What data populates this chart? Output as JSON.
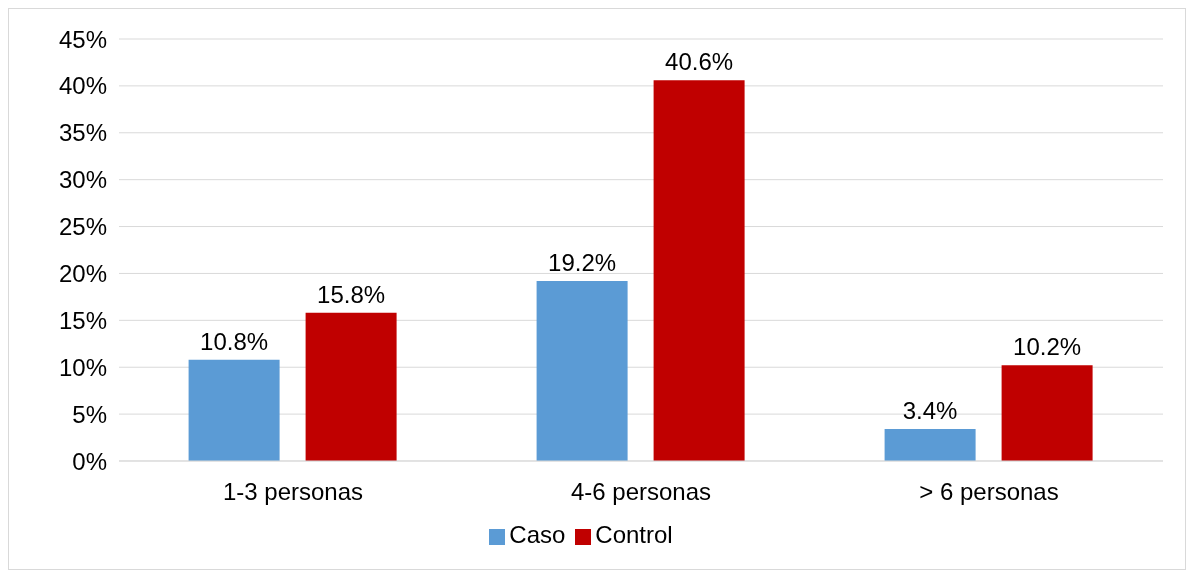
{
  "chart_data": {
    "type": "bar",
    "categories": [
      "1-3 personas",
      "4-6 personas",
      "> 6 personas"
    ],
    "series": [
      {
        "name": "Caso",
        "color": "#5b9bd5",
        "values": [
          10.8,
          19.2,
          3.4
        ],
        "value_labels": [
          "10.8%",
          "19.2%",
          "3.4%"
        ]
      },
      {
        "name": "Control",
        "color": "#c00000",
        "values": [
          15.8,
          40.6,
          10.2
        ],
        "value_labels": [
          "15.8%",
          "40.6%",
          "10.2%"
        ]
      }
    ],
    "ylim": [
      0,
      45
    ],
    "yticks": [
      {
        "value": 0,
        "label": "0%"
      },
      {
        "value": 5,
        "label": "5%"
      },
      {
        "value": 10,
        "label": "10%"
      },
      {
        "value": 15,
        "label": "15%"
      },
      {
        "value": 20,
        "label": "20%"
      },
      {
        "value": 25,
        "label": "25%"
      },
      {
        "value": 30,
        "label": "30%"
      },
      {
        "value": 35,
        "label": "35%"
      },
      {
        "value": 40,
        "label": "40%"
      },
      {
        "value": 45,
        "label": "45%"
      }
    ],
    "grid": "y",
    "legend": "bottom"
  }
}
